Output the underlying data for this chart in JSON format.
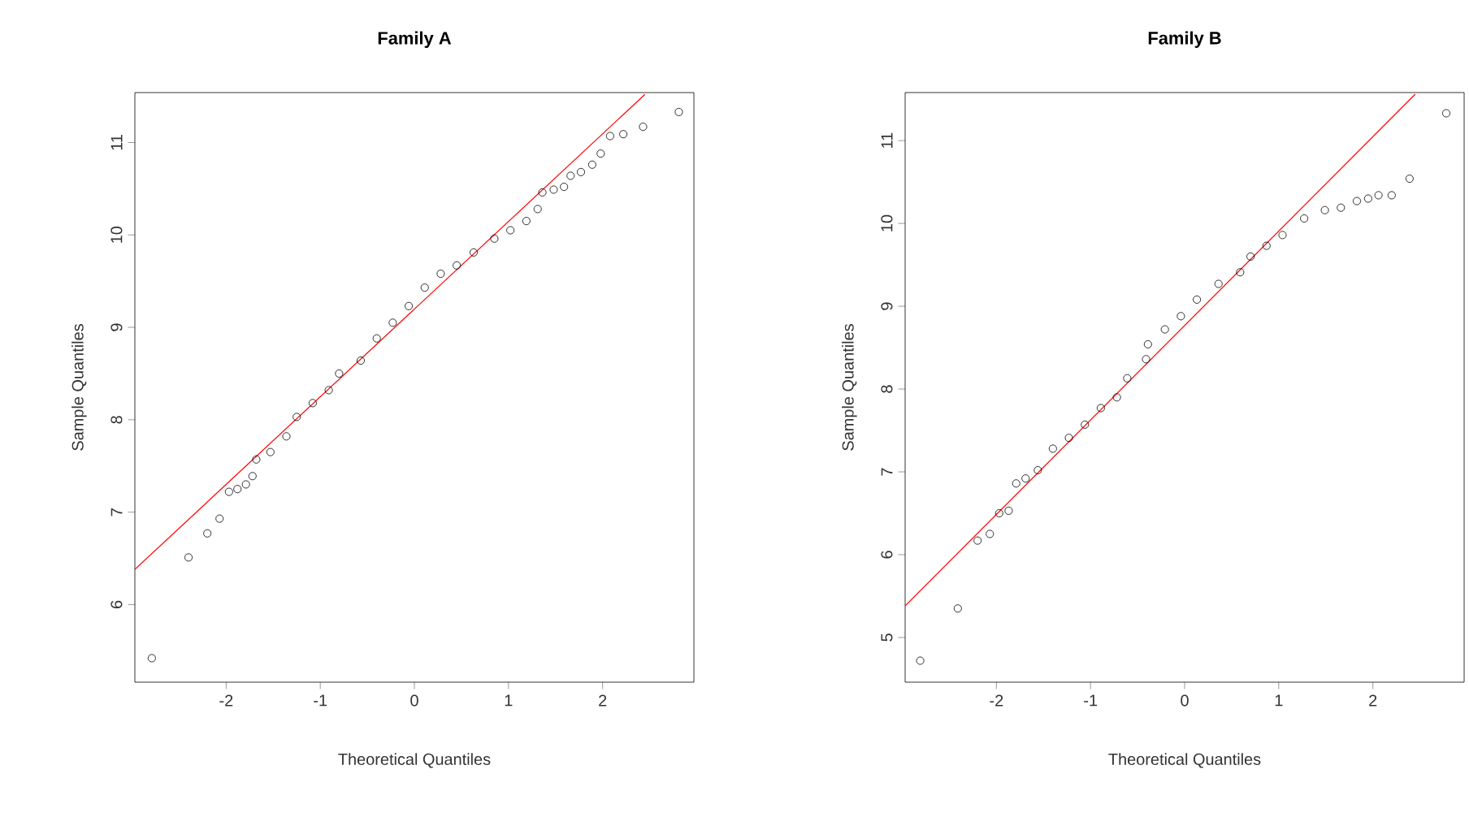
{
  "chart_data": [
    {
      "type": "scatter",
      "title": "Family A",
      "xlabel": "Theoretical Quantiles",
      "ylabel": "Sample Quantiles",
      "xlim": [
        -2.97,
        2.97
      ],
      "ylim": [
        5.16,
        11.54
      ],
      "xticks": [
        -2,
        -1,
        0,
        1,
        2
      ],
      "yticks": [
        6,
        7,
        8,
        9,
        10,
        11
      ],
      "series": [
        {
          "marker": "circle",
          "color": "#000000",
          "x": [
            -2.79,
            -2.4,
            -2.2,
            -2.07,
            -1.97,
            -1.88,
            -1.79,
            -1.72,
            -1.68,
            -1.53,
            -1.36,
            -1.25,
            -1.08,
            -0.91,
            -0.8,
            -0.57,
            -0.4,
            -0.23,
            -0.06,
            0.11,
            0.28,
            0.45,
            0.63,
            0.85,
            1.02,
            1.19,
            1.31,
            1.36,
            1.48,
            1.59,
            1.66,
            1.77,
            1.89,
            1.98,
            2.08,
            2.22,
            2.43,
            2.81
          ],
          "values": [
            5.42,
            6.51,
            6.77,
            6.93,
            7.22,
            7.25,
            7.3,
            7.39,
            7.57,
            7.65,
            7.82,
            8.03,
            8.18,
            8.32,
            8.5,
            8.64,
            8.88,
            9.05,
            9.23,
            9.43,
            9.58,
            9.67,
            9.81,
            9.96,
            10.05,
            10.15,
            10.28,
            10.46,
            10.49,
            10.52,
            10.64,
            10.68,
            10.76,
            10.88,
            11.07,
            11.09,
            11.17,
            11.33
          ]
        },
        {
          "type": "line",
          "color": "#ff0000",
          "x": [
            -2.97,
            2.45
          ],
          "values": [
            6.38,
            11.52
          ]
        }
      ]
    },
    {
      "type": "scatter",
      "title": "Family B",
      "xlabel": "Theoretical Quantiles",
      "ylabel": "Sample Quantiles",
      "xlim": [
        -2.97,
        2.97
      ],
      "ylim": [
        4.46,
        11.58
      ],
      "xticks": [
        -2,
        -1,
        0,
        1,
        2
      ],
      "yticks": [
        5,
        6,
        7,
        8,
        9,
        10,
        11
      ],
      "series": [
        {
          "marker": "circle",
          "color": "#000000",
          "x": [
            -2.81,
            -2.41,
            -2.2,
            -2.07,
            -1.97,
            -1.87,
            -1.79,
            -1.69,
            -1.56,
            -1.4,
            -1.23,
            -1.06,
            -0.89,
            -0.72,
            -0.61,
            -0.41,
            -0.39,
            -0.21,
            -0.04,
            0.13,
            0.36,
            0.59,
            0.7,
            0.87,
            1.04,
            1.27,
            1.49,
            1.66,
            1.83,
            1.95,
            2.06,
            2.2,
            2.39,
            2.78
          ],
          "values": [
            4.72,
            5.35,
            6.17,
            6.25,
            6.5,
            6.53,
            6.86,
            6.92,
            7.02,
            7.28,
            7.41,
            7.57,
            7.77,
            7.9,
            8.13,
            8.36,
            8.54,
            8.72,
            8.88,
            9.08,
            9.27,
            9.41,
            9.6,
            9.73,
            9.86,
            10.06,
            10.16,
            10.19,
            10.27,
            10.3,
            10.34,
            10.34,
            10.54,
            11.33
          ]
        },
        {
          "type": "line",
          "color": "#ff0000",
          "x": [
            -2.97,
            2.45
          ],
          "values": [
            5.38,
            11.56
          ]
        }
      ]
    }
  ]
}
